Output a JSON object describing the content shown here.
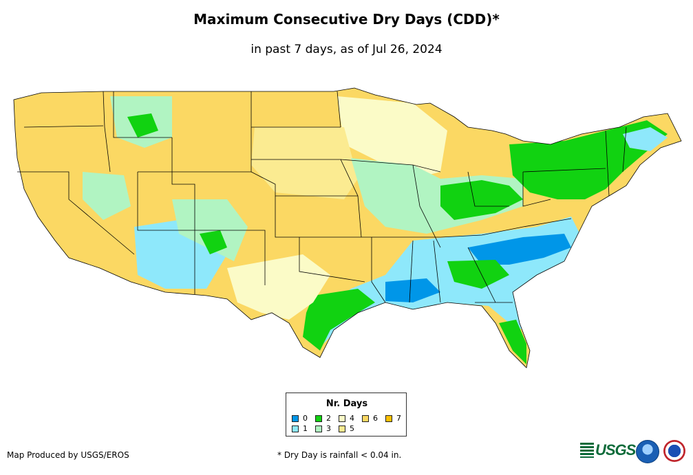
{
  "title": "Maximum Consecutive Dry Days (CDD)*",
  "subtitle": "in past 7 days, as of Jul 26, 2024",
  "legend": {
    "title": "Nr. Days",
    "items": [
      {
        "label": "0",
        "color": "#0096e8"
      },
      {
        "label": "1",
        "color": "#8ee8fb"
      },
      {
        "label": "2",
        "color": "#11d211"
      },
      {
        "label": "3",
        "color": "#b1f4c2"
      },
      {
        "label": "4",
        "color": "#fbfbc7"
      },
      {
        "label": "5",
        "color": "#fbeb91"
      },
      {
        "label": "6",
        "color": "#fbd863"
      },
      {
        "label": "7",
        "color": "#fbc000"
      }
    ]
  },
  "credit": "Map Produced by USGS/EROS",
  "footnote": "* Dry Day is rainfall < 0.04 in.",
  "logos": {
    "usgs": "USGS",
    "usgs_icon": "usgs-waves-logo",
    "noaa_icon": "noaa-logo",
    "nws_icon": "nws-logo"
  },
  "colors": {
    "state_border": "#000000",
    "background": "#ffffff"
  }
}
